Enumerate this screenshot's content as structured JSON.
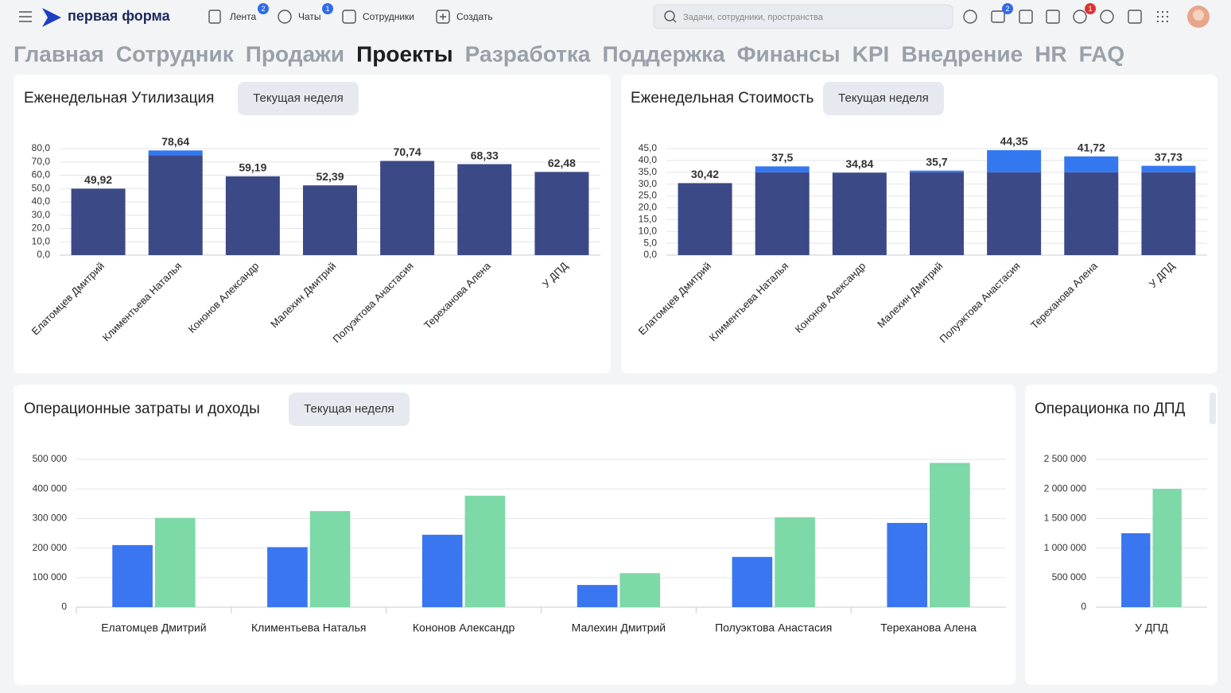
{
  "header": {
    "logo": "первая форма",
    "nav": [
      {
        "label": "Лента",
        "badge": 2
      },
      {
        "label": "Чаты",
        "badge": 1
      },
      {
        "label": "Сотрудники"
      },
      {
        "label": "Создать"
      }
    ],
    "search_placeholder": "Задачи, сотрудники, пространства",
    "icon_badges": [
      2,
      1
    ]
  },
  "tabs": {
    "items": [
      "Главная",
      "Сотрудник",
      "Продажи",
      "Проекты",
      "Разработка",
      "Поддержка",
      "Финансы",
      "KPI",
      "Внедрение",
      "HR",
      "FAQ"
    ],
    "active": 3
  },
  "chart_data": [
    {
      "type": "bar",
      "title": "Еженедельная Утилизация",
      "button": "Текущая неделя",
      "categories": [
        "Елатомцев Дмитрий",
        "Климентьева Наталья",
        "Кононов Александр",
        "Малехин Дмитрий",
        "Полуэктова Анастасия",
        "Тереханова Алена",
        "У ДПД"
      ],
      "values": [
        49.92,
        78.64,
        59.19,
        52.39,
        70.74,
        68.33,
        62.48
      ],
      "value_labels": [
        "49,92",
        "78,64",
        "59,19",
        "52,39",
        "70,74",
        "68,33",
        "62,48"
      ],
      "color": "#3b4a86",
      "overflow_color": "#3478f0",
      "target": 75,
      "ylim": [
        0,
        80
      ],
      "yticks": [
        {
          "value": 0,
          "label": "0,0"
        },
        {
          "value": 10,
          "label": "10,0"
        },
        {
          "value": 20,
          "label": "20,0"
        },
        {
          "value": 30,
          "label": "30,0"
        },
        {
          "value": 40,
          "label": "40,0"
        },
        {
          "value": 50,
          "label": "50,0"
        },
        {
          "value": 60,
          "label": "60,0"
        },
        {
          "value": 70,
          "label": "70,0"
        },
        {
          "value": 80,
          "label": "80,0"
        }
      ],
      "grid": true
    },
    {
      "type": "bar",
      "title": "Еженедельная Стоимость",
      "button": "Текущая неделя",
      "categories": [
        "Елатомцев Дмитрий",
        "Климентьева Наталья",
        "Кононов Александр",
        "Малехин Дмитрий",
        "Полуэктова Анастасия",
        "Тереханова Алена",
        "У ДПД"
      ],
      "values": [
        30.42,
        37.5,
        34.84,
        35.7,
        44.35,
        41.72,
        37.73
      ],
      "value_labels": [
        "30,42",
        "37,5",
        "34,84",
        "35,7",
        "44,35",
        "41,72",
        "37,73"
      ],
      "color": "#3b4a86",
      "overflow_color": "#3478f0",
      "target": 35,
      "ylim": [
        0,
        45
      ],
      "yticks": [
        {
          "value": 0,
          "label": "0,0"
        },
        {
          "value": 5,
          "label": "5,0"
        },
        {
          "value": 10,
          "label": "10,0"
        },
        {
          "value": 15,
          "label": "15,0"
        },
        {
          "value": 20,
          "label": "20,0"
        },
        {
          "value": 25,
          "label": "25,0"
        },
        {
          "value": 30,
          "label": "30,0"
        },
        {
          "value": 35,
          "label": "35,0"
        },
        {
          "value": 40,
          "label": "40,0"
        },
        {
          "value": 45,
          "label": "45,0"
        }
      ],
      "grid": true
    },
    {
      "type": "grouped_bar",
      "title": "Операционные затраты и доходы",
      "button": "Текущая неделя",
      "categories": [
        "Елатомцев Дмитрий",
        "Климентьева Наталья",
        "Кононов Александр",
        "Малехин Дмитрий",
        "Полуэктова Анастасия",
        "Тереханова Алена"
      ],
      "series": [
        {
          "color": "#3a76f0",
          "values": [
            210000,
            203000,
            245000,
            75000,
            170000,
            285000
          ]
        },
        {
          "color": "#7dd9a7",
          "values": [
            302000,
            325000,
            377000,
            115000,
            304000,
            488000
          ]
        }
      ],
      "ylim": [
        0,
        500000
      ],
      "yticks": [
        0,
        {
          "value": 100000,
          "label": "100 000"
        },
        {
          "value": 200000,
          "label": "200 000"
        },
        {
          "value": 300000,
          "label": "300 000"
        },
        {
          "value": 400000,
          "label": "400 000"
        },
        {
          "value": 500000,
          "label": "500 000"
        }
      ],
      "grid": true
    },
    {
      "type": "grouped_bar",
      "title": "Операционка по ДПД",
      "categories": [
        "У ДПД"
      ],
      "series": [
        {
          "color": "#3a76f0",
          "values": [
            1250000
          ]
        },
        {
          "color": "#7dd9a7",
          "values": [
            2000000
          ]
        }
      ],
      "ylim": [
        0,
        2500000
      ],
      "yticks": [
        0,
        {
          "value": 500000,
          "label": "500 000"
        },
        {
          "value": 1000000,
          "label": "1 000 000"
        },
        {
          "value": 1500000,
          "label": "1 500 000"
        },
        {
          "value": 2000000,
          "label": "2 000 000"
        },
        {
          "value": 2500000,
          "label": "2 500 000"
        }
      ],
      "grid": true
    }
  ]
}
